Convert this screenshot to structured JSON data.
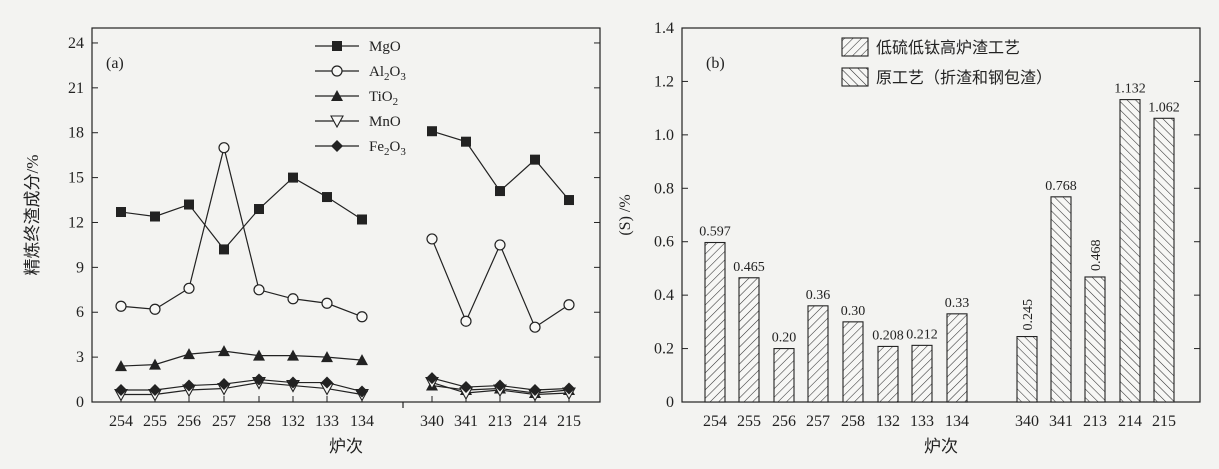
{
  "chart_data": [
    {
      "type": "line",
      "panel_label": "(a)",
      "xlabel": "炉次",
      "ylabel": "精炼终渣成分/%",
      "ylim": [
        0,
        25
      ],
      "yticks": [
        "0",
        "3",
        "6",
        "9",
        "12",
        "15",
        "18",
        "21",
        "24"
      ],
      "categories": [
        "254",
        "255",
        "256",
        "257",
        "258",
        "132",
        "133",
        "134",
        "340",
        "341",
        "213",
        "214",
        "215"
      ],
      "groups": [
        [
          0,
          7
        ],
        [
          8,
          12
        ]
      ],
      "legend_position": "top-center",
      "series": [
        {
          "name": "MgO",
          "marker": "square-filled",
          "values": [
            12.7,
            12.4,
            13.2,
            10.2,
            12.9,
            15.0,
            13.7,
            12.2,
            18.1,
            17.4,
            14.1,
            16.2,
            13.5
          ]
        },
        {
          "name": "Al2O3",
          "marker": "circle-open",
          "values": [
            6.4,
            6.2,
            7.6,
            17.0,
            7.5,
            6.9,
            6.6,
            5.7,
            10.9,
            5.4,
            10.5,
            5.0,
            6.5
          ]
        },
        {
          "name": "TiO2",
          "marker": "triangle-filled",
          "values": [
            2.4,
            2.5,
            3.2,
            3.4,
            3.1,
            3.1,
            3.0,
            2.8,
            1.1,
            0.8,
            0.9,
            0.6,
            0.8
          ]
        },
        {
          "name": "MnO",
          "marker": "triangle-down-open",
          "values": [
            0.5,
            0.5,
            0.8,
            0.9,
            1.3,
            1.1,
            0.9,
            0.5,
            1.3,
            0.6,
            0.8,
            0.5,
            0.6
          ]
        },
        {
          "name": "Fe2O3",
          "marker": "diamond-filled",
          "values": [
            0.8,
            0.8,
            1.1,
            1.2,
            1.5,
            1.3,
            1.3,
            0.7,
            1.6,
            1.0,
            1.1,
            0.8,
            0.9
          ]
        }
      ],
      "legend_labels": [
        {
          "base": "MgO",
          "sub": "",
          "tail": ""
        },
        {
          "base": "Al",
          "sub": "2",
          "tail": "O",
          "sub2": "3"
        },
        {
          "base": "TiO",
          "sub": "2",
          "tail": ""
        },
        {
          "base": "MnO",
          "sub": "",
          "tail": ""
        },
        {
          "base": "Fe",
          "sub": "2",
          "tail": "O",
          "sub2": "3"
        }
      ]
    },
    {
      "type": "bar",
      "panel_label": "(b)",
      "xlabel": "炉次",
      "ylabel": "(S) /%",
      "ylim": [
        0,
        1.4
      ],
      "yticks": [
        "0",
        "0.2",
        "0.4",
        "0.6",
        "0.8",
        "1.0",
        "1.2",
        "1.4"
      ],
      "categories": [
        "254",
        "255",
        "256",
        "257",
        "258",
        "132",
        "133",
        "134",
        "340",
        "341",
        "213",
        "214",
        "215"
      ],
      "legend_position": "top-center",
      "series": [
        {
          "name": "低硫低钛高炉渣工艺",
          "hatch": "forward",
          "values": [
            0.597,
            0.465,
            0.2,
            0.36,
            0.3,
            0.208,
            0.212,
            0.33,
            null,
            null,
            null,
            null,
            null
          ]
        },
        {
          "name": "原工艺（折渣和钢包渣）",
          "hatch": "backward",
          "values": [
            null,
            null,
            null,
            null,
            null,
            null,
            null,
            null,
            0.245,
            0.768,
            0.468,
            1.132,
            1.062
          ]
        }
      ],
      "data_labels": [
        "0.597",
        "0.465",
        "0.20",
        "0.36",
        "0.30",
        "0.208",
        "0.212",
        "0.33",
        "0.245",
        "0.768",
        "0.468",
        "1.132",
        "1.062"
      ],
      "rotated_labels": [
        8,
        10
      ]
    }
  ]
}
